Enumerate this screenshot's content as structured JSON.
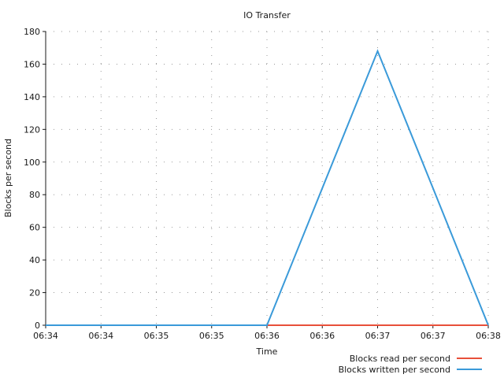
{
  "chart_data": {
    "type": "line",
    "title": "IO Transfer",
    "xlabel": "Time",
    "ylabel": "Blocks per second",
    "x_tick_labels": [
      "06:34",
      "06:34",
      "06:35",
      "06:35",
      "06:36",
      "06:36",
      "06:37",
      "06:37",
      "06:38"
    ],
    "y_ticks": [
      0,
      20,
      40,
      60,
      80,
      100,
      120,
      140,
      160,
      180
    ],
    "ylim": [
      0,
      180
    ],
    "grid": true,
    "legend_position": "bottom-right",
    "x": [
      0,
      1,
      2,
      3,
      4,
      5,
      6,
      7,
      8
    ],
    "series": [
      {
        "name": "Blocks read per second",
        "color": "#e8503a",
        "values": [
          0,
          0,
          0,
          0,
          0,
          0,
          0,
          0,
          0
        ]
      },
      {
        "name": "Blocks written per second",
        "color": "#3a9ad9",
        "values": [
          0,
          0,
          0,
          0,
          0,
          84,
          168,
          84,
          0
        ]
      }
    ]
  }
}
